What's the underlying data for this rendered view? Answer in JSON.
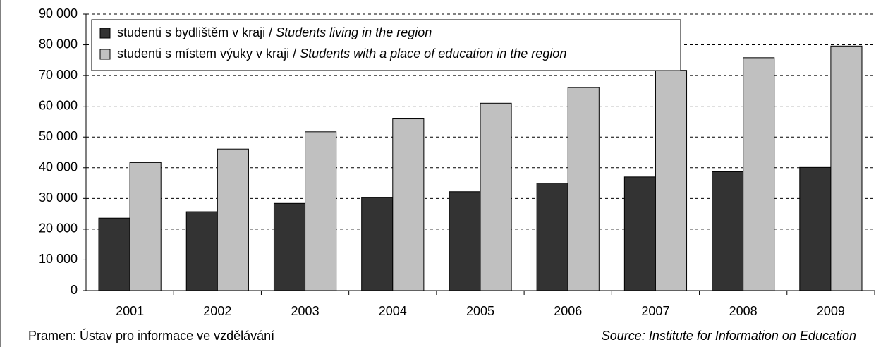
{
  "chart_data": {
    "type": "bar",
    "categories": [
      "2001",
      "2002",
      "2003",
      "2004",
      "2005",
      "2006",
      "2007",
      "2008",
      "2009"
    ],
    "series": [
      {
        "name": "studenti s bydlištěm v kraji / Students living in the region",
        "color": "#333333",
        "values": [
          23600,
          25700,
          28400,
          30300,
          32200,
          35000,
          37000,
          38700,
          40100
        ]
      },
      {
        "name": "studenti s místem výuky v kraji / Students with a place of education in the region",
        "color": "#c0c0c0",
        "values": [
          41700,
          46100,
          51700,
          55900,
          61000,
          66100,
          71700,
          75800,
          79600
        ]
      }
    ],
    "ylim": [
      0,
      90000
    ],
    "yticks": [
      0,
      {
        "value": 10000,
        "label": "10 000"
      },
      {
        "value": 20000,
        "label": "20 000"
      },
      {
        "value": 30000,
        "label": "30 000"
      },
      {
        "value": 40000,
        "label": "40 000"
      },
      {
        "value": 50000,
        "label": "50 000"
      },
      {
        "value": 60000,
        "label": "60 000"
      },
      {
        "value": 70000,
        "label": "70 000"
      },
      {
        "value": 80000,
        "label": "80 000"
      },
      {
        "value": 90000,
        "label": "90 000"
      }
    ],
    "grid": true,
    "legend": "top-left",
    "source_cz": "Pramen: Ústav pro informace ve vzdělávání",
    "source_en": "Source: Institute for Information on Education"
  }
}
